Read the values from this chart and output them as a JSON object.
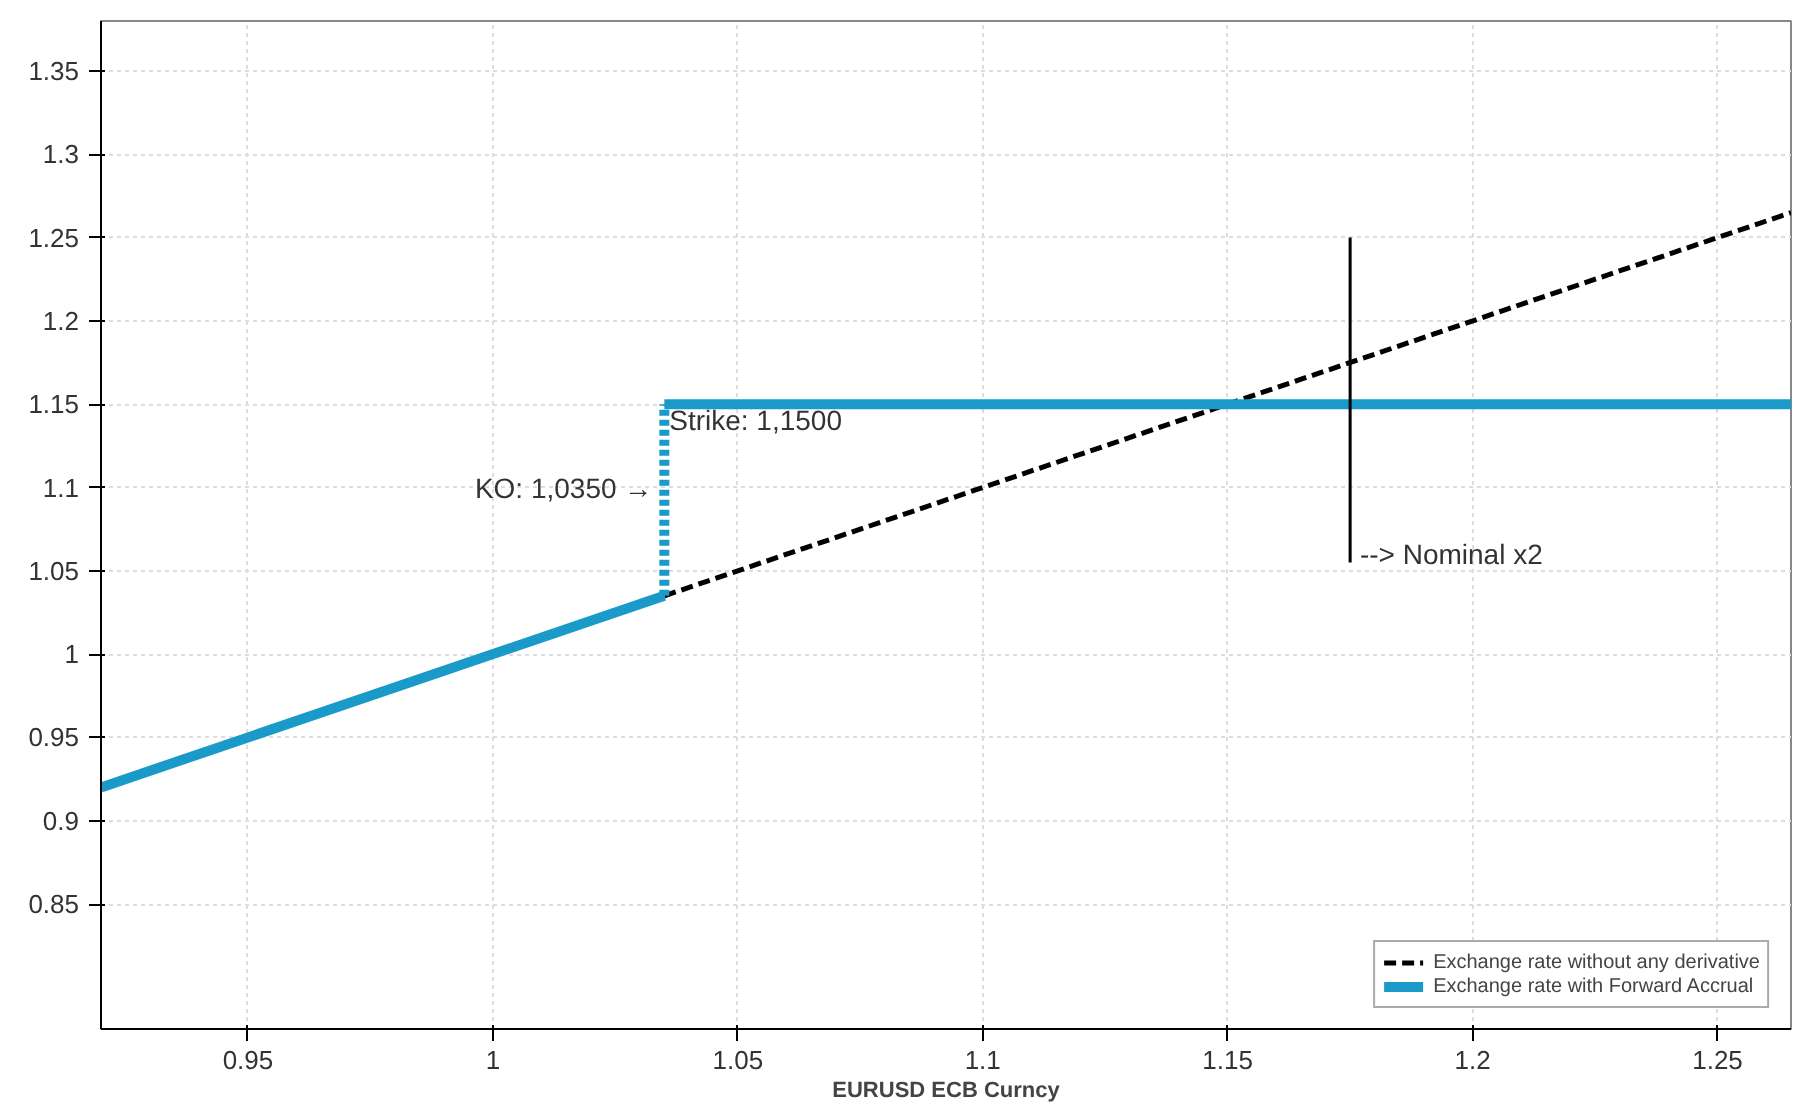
{
  "chart_data": {
    "type": "line",
    "xlabel": "EURUSD ECB Curncy",
    "xlim": [
      0.92,
      1.265
    ],
    "ylim": [
      0.775,
      1.38
    ],
    "xticks": [
      0.95,
      1,
      1.05,
      1.1,
      1.15,
      1.2,
      1.25
    ],
    "yticks": [
      0.85,
      0.9,
      0.95,
      1,
      1.05,
      1.1,
      1.15,
      1.2,
      1.25,
      1.3,
      1.35
    ],
    "grid": true,
    "legend": "bottom right",
    "series": [
      {
        "name": "Exchange rate without any derivative",
        "color": "#000000",
        "line_style": "dashed",
        "x": [
          1.035,
          1.265
        ],
        "values": [
          1.035,
          1.265
        ]
      },
      {
        "name": "Exchange rate with Forward Accrual",
        "color": "#1a9ac9",
        "line_style": "solid",
        "x": [
          0.92,
          1.035
        ],
        "values": [
          0.92,
          1.035
        ]
      },
      {
        "color": "#1a9ac9",
        "line_style": "dotted",
        "x": [
          1.035,
          1.035
        ],
        "values": [
          1.035,
          1.15
        ]
      },
      {
        "color": "#1a9ac9",
        "line_style": "solid",
        "x": [
          1.035,
          1.265
        ],
        "values": [
          1.15,
          1.15
        ]
      },
      {
        "color": "#000000",
        "line_style": "solid",
        "x": [
          1.175,
          1.175
        ],
        "values": [
          1.055,
          1.25
        ]
      }
    ],
    "annotations": [
      {
        "text": "Strike: 1,1500",
        "x": 1.036,
        "y": 1.15
      },
      {
        "text": "KO: 1,0350 →",
        "x": 1.035,
        "y": 1.1
      },
      {
        "text": "--> Nominal x2",
        "x": 1.177,
        "y": 1.06
      }
    ]
  }
}
